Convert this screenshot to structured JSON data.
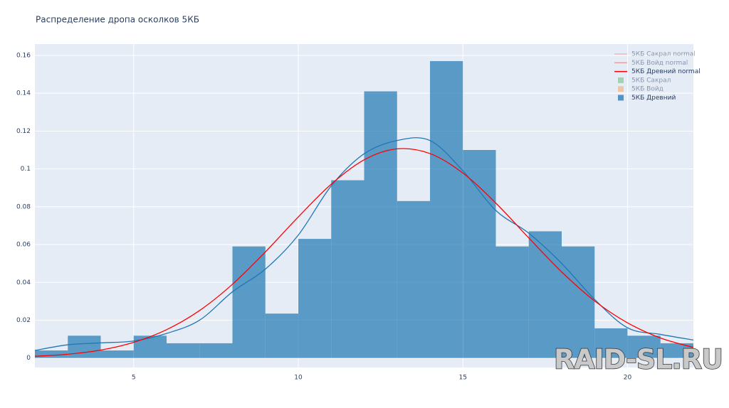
{
  "chart_data": {
    "type": "histogram",
    "title": "Распределение дропа осколков 5КБ",
    "bins": [
      2,
      3,
      4,
      5,
      6,
      7,
      8,
      9,
      10,
      11,
      12,
      13,
      14,
      15,
      16,
      17,
      18,
      19,
      20,
      21,
      22
    ],
    "values": [
      0.004,
      0.0118,
      0.004,
      0.0118,
      0.0078,
      0.0078,
      0.059,
      0.0235,
      0.063,
      0.094,
      0.141,
      0.083,
      0.157,
      0.11,
      0.059,
      0.067,
      0.059,
      0.0157,
      0.0118,
      0.0078
    ],
    "color": "#1f77b4",
    "lines": [
      {
        "color": "#1f77b4",
        "x": [
          2,
          3,
          4,
          5,
          6,
          7,
          8,
          9,
          10,
          11,
          12,
          13,
          14,
          15,
          16,
          17,
          18,
          19,
          20,
          21,
          22
        ],
        "values": [
          0.004,
          0.007,
          0.008,
          0.009,
          0.013,
          0.02,
          0.035,
          0.047,
          0.065,
          0.091,
          0.108,
          0.115,
          0.115,
          0.099,
          0.078,
          0.066,
          0.05,
          0.031,
          0.016,
          0.0125,
          0.0095
        ]
      },
      {
        "color": "#ff0000",
        "x": [
          2,
          3,
          4,
          5,
          6,
          7,
          8,
          9,
          10,
          11,
          12,
          13,
          14,
          15,
          16,
          17,
          18,
          19,
          20,
          21,
          22
        ],
        "values": [
          0.0009,
          0.002,
          0.0042,
          0.0083,
          0.015,
          0.0251,
          0.039,
          0.0561,
          0.0746,
          0.0919,
          0.1048,
          0.1106,
          0.1081,
          0.0978,
          0.0819,
          0.0635,
          0.0455,
          0.0302,
          0.0186,
          0.0106,
          0.0056
        ]
      }
    ],
    "legend": [
      {
        "name": "5КБ Сакрал normal",
        "kind": "line",
        "color": "#f08080",
        "hidden": true
      },
      {
        "name": "5КБ Войд normal",
        "kind": "line",
        "color": "#f05050",
        "hidden": true
      },
      {
        "name": "5КБ Древний normal",
        "kind": "line",
        "color": "#ff0000",
        "hidden": false
      },
      {
        "name": "5КБ Сакрал",
        "kind": "box",
        "color": "#2ca02c",
        "hidden": true
      },
      {
        "name": "5КБ Войд",
        "kind": "box",
        "color": "#ff7f0e",
        "hidden": true
      },
      {
        "name": "5КБ Древний",
        "kind": "box",
        "color": "#1f77b4",
        "hidden": false
      }
    ],
    "xlim": [
      2,
      22
    ],
    "xticks": [
      5,
      10,
      15,
      20
    ],
    "ylim": [
      -0.005,
      0.166
    ],
    "yticks": [
      0,
      0.02,
      0.04,
      0.06,
      0.08,
      0.1,
      0.12,
      0.14,
      0.16
    ],
    "grid": true,
    "watermark": "RAID-SL.RU"
  }
}
